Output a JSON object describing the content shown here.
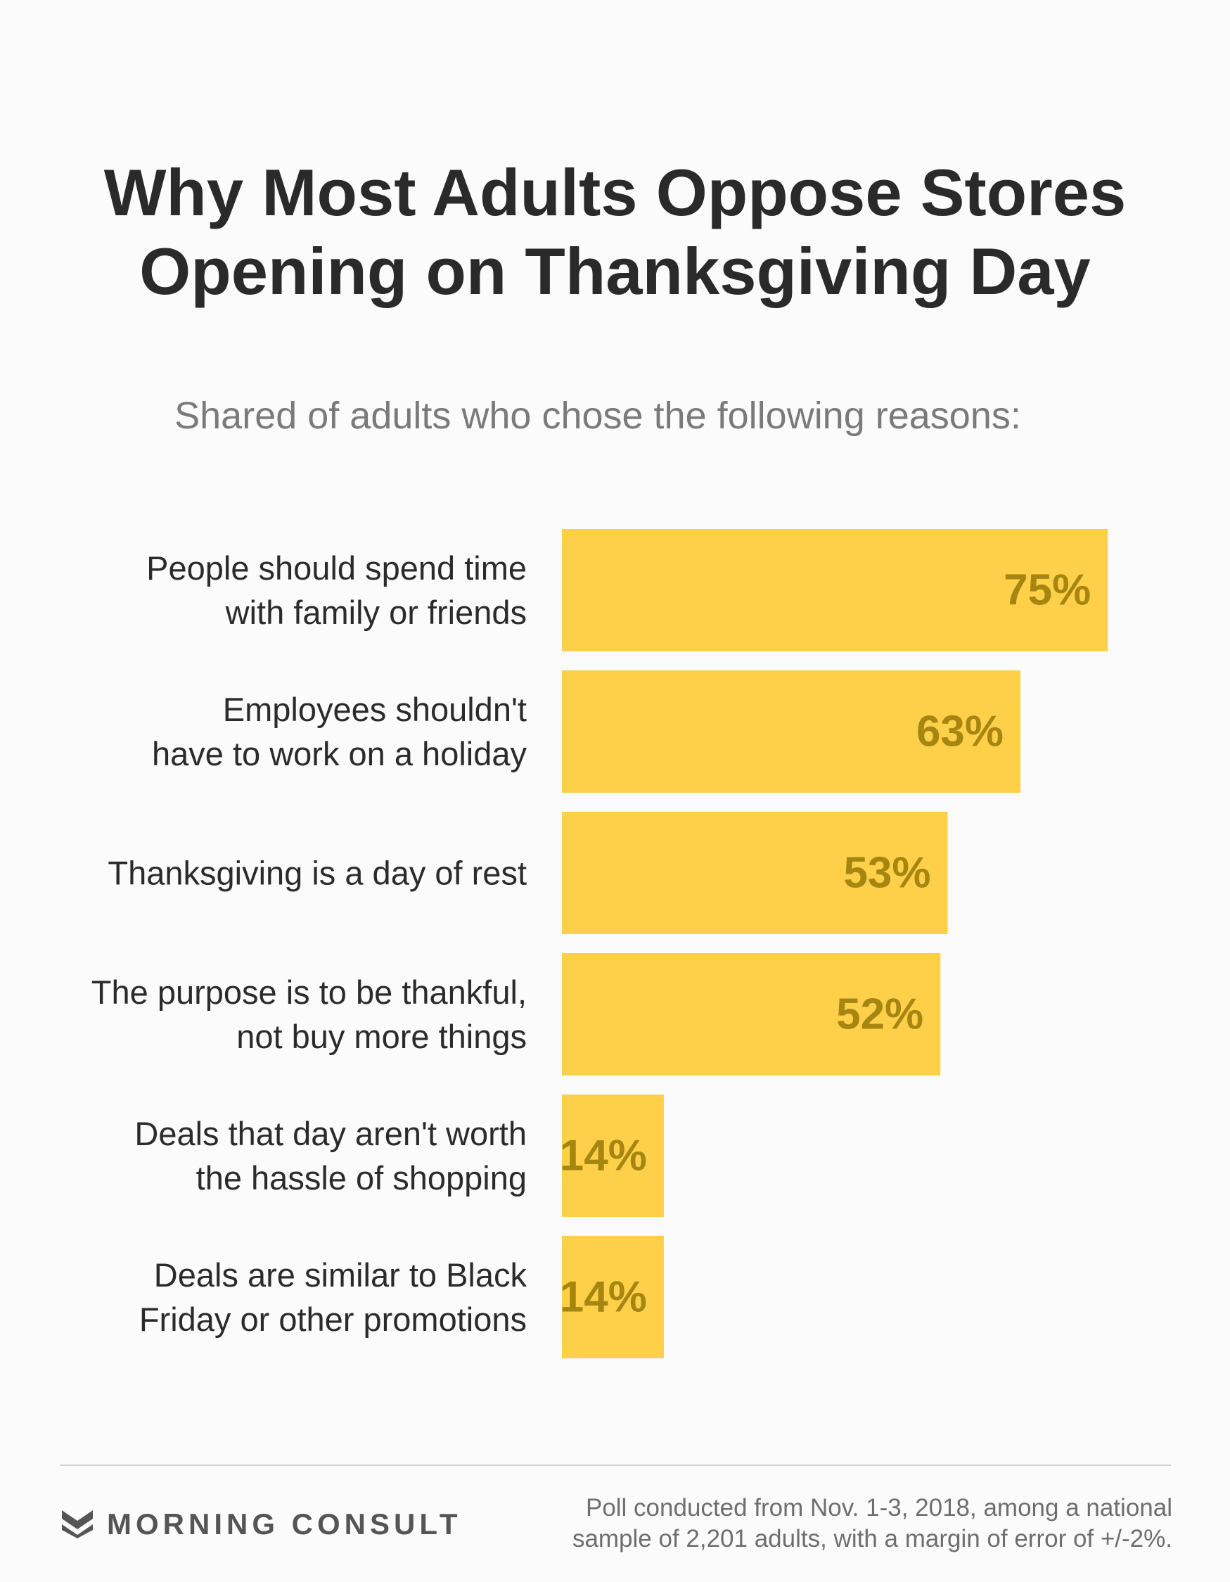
{
  "header": {
    "title_line1": "Why Most Adults Oppose Stores",
    "title_line2": "Opening on Thanksgiving Day",
    "subtitle": "Shared of adults who chose the following reasons:"
  },
  "chart_data": {
    "type": "bar",
    "orientation": "horizontal",
    "title": "Why Most Adults Oppose Stores Opening on Thanksgiving Day",
    "subtitle": "Shared of adults who chose the following reasons:",
    "categories": [
      [
        "People should spend time",
        "with family or friends"
      ],
      [
        "Employees shouldn't",
        "have to work on a holiday"
      ],
      [
        "Thanksgiving is a day of rest"
      ],
      [
        "The purpose is to be thankful,",
        "not buy more things"
      ],
      [
        "Deals that day aren't worth",
        "the hassle of shopping"
      ],
      [
        "Deals are similar to Black",
        "Friday or other promotions"
      ]
    ],
    "values": [
      75,
      63,
      53,
      52,
      14,
      14
    ],
    "value_labels": [
      "75%",
      "63%",
      "53%",
      "52%",
      "14%",
      "14%"
    ],
    "unit": "%",
    "xlim": [
      0,
      100
    ],
    "grid": false,
    "bar_color": "#fed049",
    "value_label_color": "#a68511"
  },
  "footer": {
    "brand": "MORNING CONSULT",
    "brand_icon": "morning-consult-logo-icon",
    "note_line1": "Poll conducted from Nov. 1-3, 2018, among a national",
    "note_line2": "sample of 2,201 adults, with a margin of error of +/-2%."
  }
}
